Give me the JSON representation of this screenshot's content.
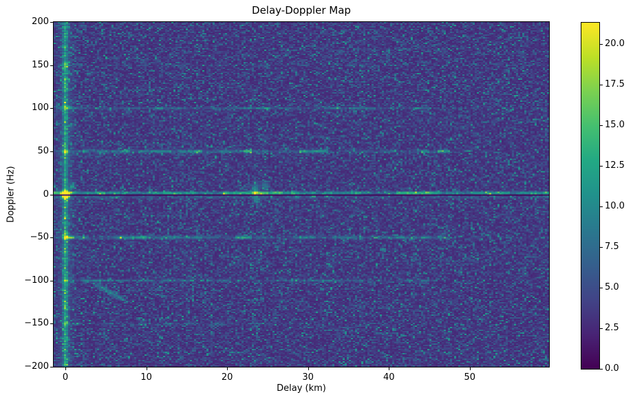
{
  "chart_data": {
    "type": "heatmap",
    "title": "Delay-Doppler Map",
    "xlabel": "Delay (km)",
    "ylabel": "Doppler (Hz)",
    "x_range": [
      -1.45,
      59.8
    ],
    "y_range": [
      -200,
      200
    ],
    "x_ticks": [
      0,
      10,
      20,
      30,
      40,
      50
    ],
    "x_tick_labels": [
      "0",
      "10",
      "20",
      "30",
      "40",
      "50"
    ],
    "y_ticks": [
      200,
      150,
      100,
      50,
      0,
      -50,
      -100,
      -150,
      -200
    ],
    "y_tick_labels": [
      "200",
      "150",
      "100",
      "50",
      "0",
      "−50",
      "−100",
      "−150",
      "−200"
    ],
    "colorbar": {
      "colormap": "viridis",
      "vmin": 0,
      "vmax": 21.3,
      "tick_values": [
        0,
        2.5,
        5,
        7.5,
        10,
        12.5,
        15,
        17.5,
        20
      ],
      "tick_labels": [
        "0.0",
        "2.5",
        "5.0",
        "7.5",
        "10.0",
        "12.5",
        "15.0",
        "17.5",
        "20.0"
      ],
      "stops": [
        [
          "0.0",
          "#440154"
        ],
        [
          "0.1",
          "#482475"
        ],
        [
          "0.2",
          "#414487"
        ],
        [
          "0.3",
          "#355f8d"
        ],
        [
          "0.4",
          "#2a788e"
        ],
        [
          "0.5",
          "#21918c"
        ],
        [
          "0.6",
          "#22a884"
        ],
        [
          "0.7",
          "#44bf70"
        ],
        [
          "0.8",
          "#7ad151"
        ],
        [
          "0.9",
          "#bddf26"
        ],
        [
          "1.0",
          "#fde725"
        ]
      ]
    },
    "grid": {
      "cols": 240,
      "rows": 250
    },
    "noise": {
      "base": 2.3,
      "scale": 1.8
    },
    "features": {
      "vertical_line": {
        "delay": 0,
        "amp": 7,
        "sigma": 0.28,
        "glow_amp": 2.0,
        "glow_sigma": 0.9
      },
      "horizontal_lines": [
        {
          "f": 1.6,
          "amp": 10.0,
          "sig": 1.5,
          "fade": 150,
          "extent": 60,
          "bmin": 0.6,
          "bvar": 0.7,
          "bpow": 1
        },
        {
          "f": 50,
          "amp": 7.0,
          "sig": 1.7,
          "fade": 100,
          "extent": 47.5,
          "bmin": 0.3,
          "bvar": 1.2,
          "bpow": 2
        },
        {
          "f": -50,
          "amp": 7.5,
          "sig": 1.7,
          "fade": 100,
          "extent": 47.5,
          "bmin": 0.3,
          "bvar": 1.2,
          "bpow": 2
        },
        {
          "f": 100,
          "amp": 4.5,
          "sig": 1.3,
          "fade": 120,
          "extent": 45.5,
          "bmin": 0.35,
          "bvar": 1.0,
          "bpow": 2
        },
        {
          "f": -100,
          "amp": 3.8,
          "sig": 1.3,
          "fade": 120,
          "extent": 45.5,
          "bmin": 0.35,
          "bvar": 1.0,
          "bpow": 2
        },
        {
          "f": 150,
          "amp": 3.0,
          "sig": 1.3,
          "fade": 120,
          "extent": 38,
          "bmin": 0.15,
          "bvar": 1.4,
          "bpow": 3
        },
        {
          "f": -150,
          "amp": 3.2,
          "sig": 1.3,
          "fade": 120,
          "extent": 28,
          "bmin": 0.15,
          "bvar": 1.4,
          "bpow": 3
        },
        {
          "f": -3.0,
          "amp": 2.5,
          "sig": 1.6,
          "fade": 150,
          "extent": 60,
          "bmin": 0.5,
          "bvar": 0.6,
          "bpow": 1
        }
      ],
      "null_line": {
        "f_min": -2.1,
        "f_max": -0.1,
        "attenuation": 0.07
      },
      "crossings": [
        {
          "f": 50,
          "amp": 6.5
        },
        {
          "f": -50,
          "amp": 7.5
        },
        {
          "f": 100,
          "amp": 5.0
        },
        {
          "f": -100,
          "amp": 4.0
        },
        {
          "f": 150,
          "amp": 4.5
        },
        {
          "f": -150,
          "amp": 4.0
        }
      ],
      "origin_peak": {
        "amp": 22,
        "sigma_km": 0.5,
        "sigma_hz": 4.5
      },
      "blobs": [
        {
          "d": 23.5,
          "f": 4,
          "amp": 7.5,
          "sd": 0.45,
          "sf": 8.0
        },
        {
          "d": 23.6,
          "f": -7,
          "amp": 5.0,
          "sd": 0.4,
          "sf": 4.0
        },
        {
          "d": 24.7,
          "f": 10,
          "amp": 5.5,
          "sd": 0.5,
          "sf": 4.0
        },
        {
          "d": 28.6,
          "f": -3,
          "amp": 4.5,
          "sd": 0.4,
          "sf": 3.0
        },
        {
          "d": 0.9,
          "f": 10,
          "amp": 5.5,
          "sd": 0.35,
          "sf": 3.5
        },
        {
          "d": 45.6,
          "f": 1.6,
          "amp": 6.0,
          "sd": 0.8,
          "sf": 2.0
        }
      ],
      "streak": {
        "d0": 4.0,
        "f0": -105,
        "d1": 7.0,
        "f1": -121,
        "amp": 5.0,
        "sigma_km": 0.3,
        "sigma_hz": 2.4
      }
    }
  }
}
